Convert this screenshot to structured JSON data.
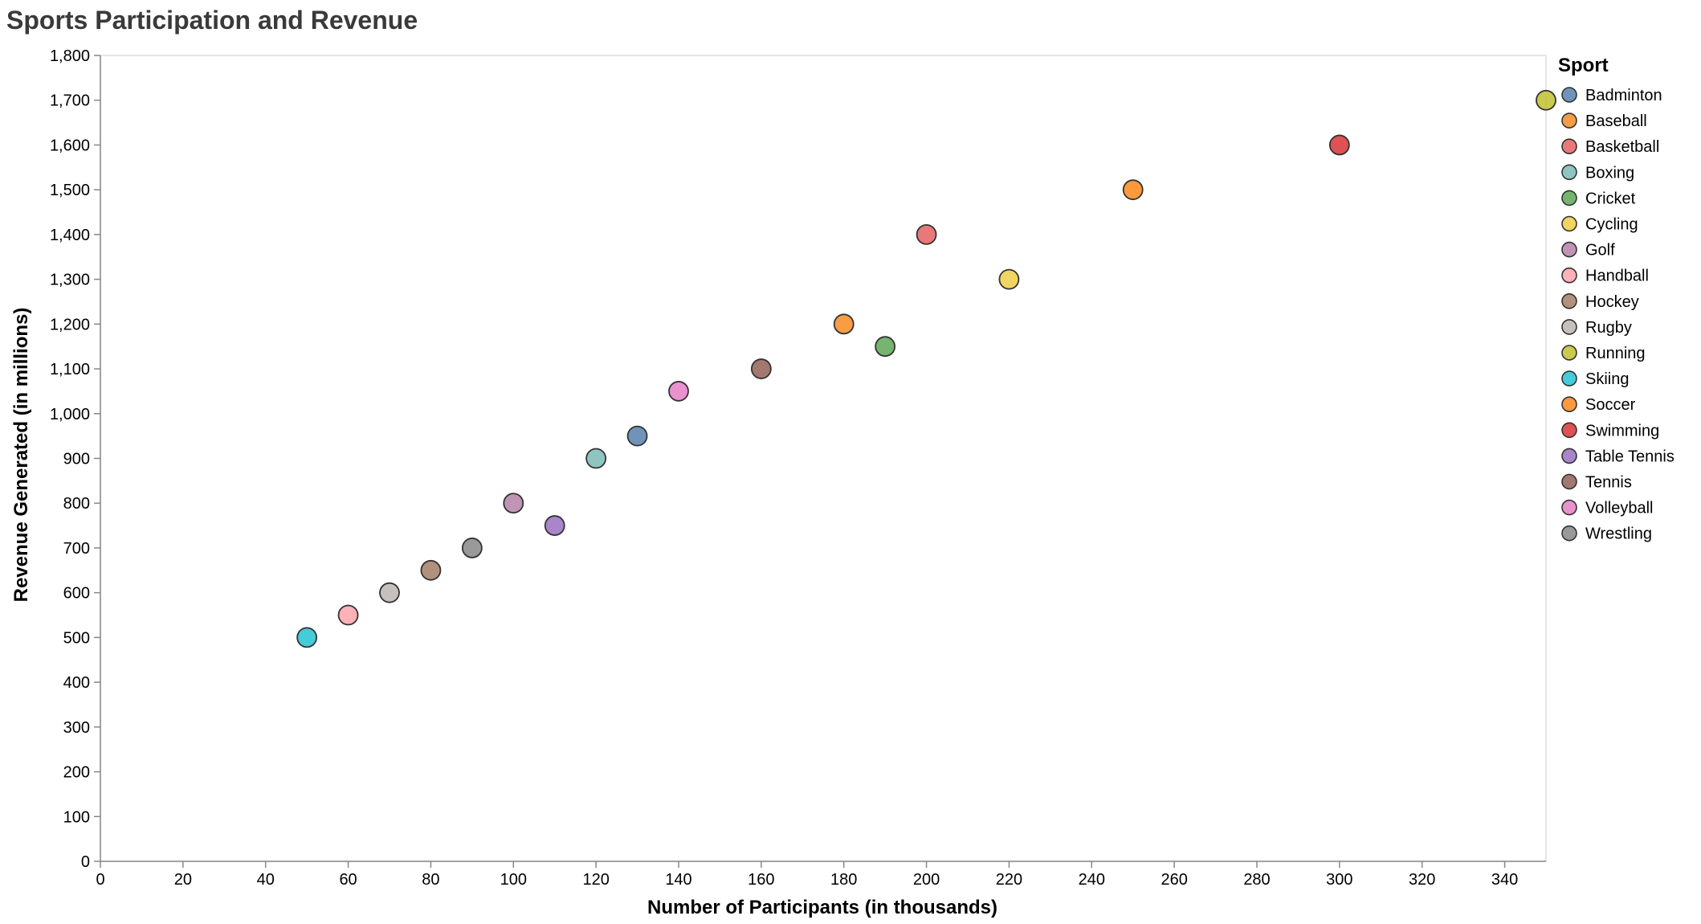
{
  "chart_data": {
    "type": "scatter",
    "title": "Sports Participation and Revenue",
    "xlabel": "Number of Participants (in thousands)",
    "ylabel": "Revenue Generated (in millions)",
    "xlim": [
      0,
      350
    ],
    "ylim": [
      0,
      1800
    ],
    "x_ticks": [
      0,
      20,
      40,
      60,
      80,
      100,
      120,
      140,
      160,
      180,
      200,
      220,
      240,
      260,
      280,
      300,
      320,
      340
    ],
    "y_ticks": [
      0,
      100,
      200,
      300,
      400,
      500,
      600,
      700,
      800,
      900,
      1000,
      1100,
      1200,
      1300,
      1400,
      1500,
      1600,
      1700,
      1800
    ],
    "grid": false,
    "legend": {
      "title": "Sport",
      "position": "right"
    },
    "points": [
      {
        "sport": "Badminton",
        "x": 130,
        "y": 950,
        "color": "#4c78a8"
      },
      {
        "sport": "Baseball",
        "x": 180,
        "y": 1200,
        "color": "#f58518"
      },
      {
        "sport": "Basketball",
        "x": 200,
        "y": 1400,
        "color": "#e45756"
      },
      {
        "sport": "Boxing",
        "x": 120,
        "y": 900,
        "color": "#72b7b2"
      },
      {
        "sport": "Cricket",
        "x": 190,
        "y": 1150,
        "color": "#54a24b"
      },
      {
        "sport": "Cycling",
        "x": 220,
        "y": 1300,
        "color": "#eeca3b"
      },
      {
        "sport": "Golf",
        "x": 100,
        "y": 800,
        "color": "#b279a2"
      },
      {
        "sport": "Handball",
        "x": 60,
        "y": 550,
        "color": "#ff9da6"
      },
      {
        "sport": "Hockey",
        "x": 80,
        "y": 650,
        "color": "#9d755d"
      },
      {
        "sport": "Rugby",
        "x": 70,
        "y": 600,
        "color": "#bab0ac"
      },
      {
        "sport": "Running",
        "x": 350,
        "y": 1700,
        "color": "#bcbd22"
      },
      {
        "sport": "Skiing",
        "x": 50,
        "y": 500,
        "color": "#17becf"
      },
      {
        "sport": "Soccer",
        "x": 250,
        "y": 1500,
        "color": "#ff7f0e"
      },
      {
        "sport": "Swimming",
        "x": 300,
        "y": 1600,
        "color": "#d62728"
      },
      {
        "sport": "Table Tennis",
        "x": 110,
        "y": 750,
        "color": "#9467bd"
      },
      {
        "sport": "Tennis",
        "x": 160,
        "y": 1100,
        "color": "#8c564b"
      },
      {
        "sport": "Volleyball",
        "x": 140,
        "y": 1050,
        "color": "#e377c2"
      },
      {
        "sport": "Wrestling",
        "x": 90,
        "y": 700,
        "color": "#7f7f7f"
      }
    ]
  }
}
